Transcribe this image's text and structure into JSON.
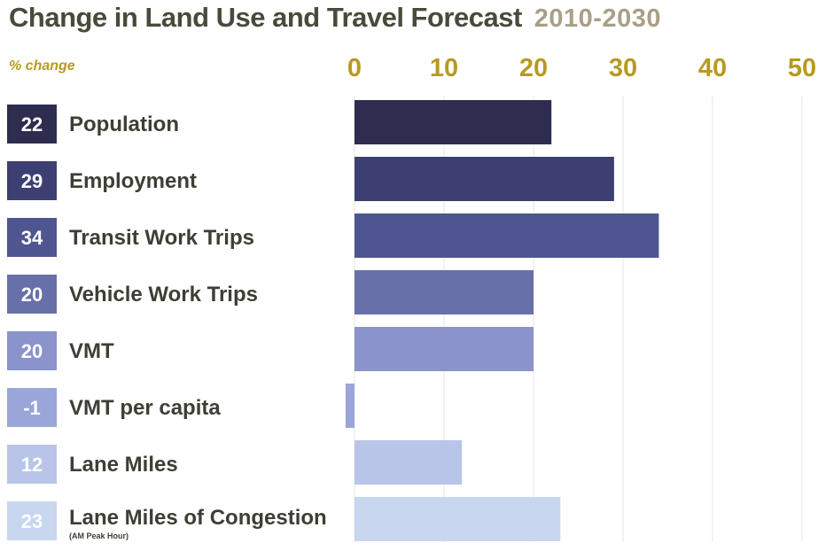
{
  "chart_data": {
    "type": "bar",
    "orientation": "horizontal",
    "title": "Change in Land Use and Travel Forecast",
    "subtitle": "2010-2030",
    "ylabel": "% change",
    "xlim": [
      0,
      50
    ],
    "xticks": [
      "0",
      "10",
      "20",
      "30",
      "40",
      "50"
    ],
    "tick_values": [
      0,
      10,
      20,
      30,
      40,
      50
    ],
    "grid": true,
    "categories": [
      "Population",
      "Employment",
      "Transit Work Trips",
      "Vehicle Work Trips",
      "VMT",
      "VMT per capita",
      "Lane Miles",
      "Lane Miles of Congestion"
    ],
    "values": [
      22,
      29,
      34,
      20,
      20,
      -1,
      12,
      23
    ],
    "value_labels": [
      "22",
      "29",
      "34",
      "20",
      "20",
      "-1",
      "12",
      "23"
    ],
    "notes": [
      "",
      "",
      "",
      "",
      "",
      "",
      "",
      "(AM Peak Hour)"
    ],
    "colors": [
      "#2e2d4f",
      "#3d3f72",
      "#4e5591",
      "#6770a8",
      "#8b93cc",
      "#9aa6da",
      "#b8c5e8",
      "#c8d6f0"
    ]
  }
}
